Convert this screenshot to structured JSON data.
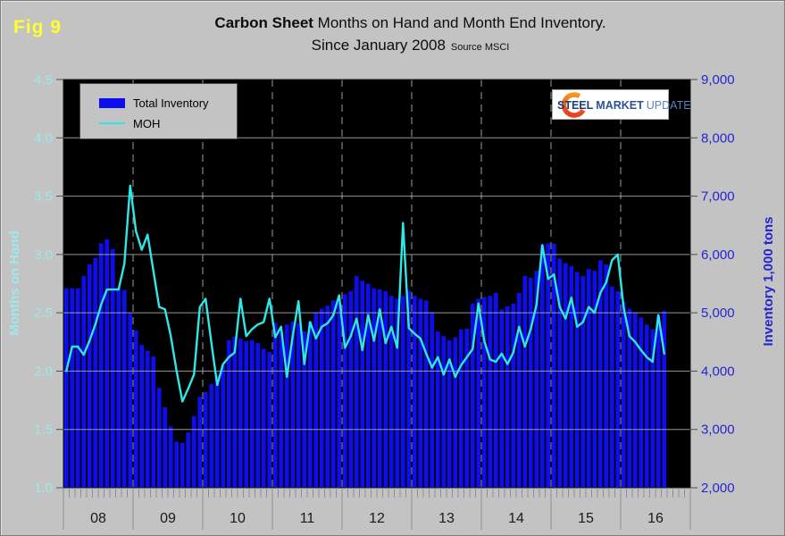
{
  "fig_label": "Fig 9",
  "title": {
    "part_bold": "Carbon Sheet",
    "part_rest": " Months on Hand and Month End Inventory.",
    "line2": "Since January 2008",
    "source": "Source MSCI"
  },
  "legend": {
    "items": [
      {
        "label": "Total Inventory",
        "type": "bar",
        "color": "#0d0df0"
      },
      {
        "label": "MOH",
        "type": "line",
        "color": "#1fe9e9"
      }
    ]
  },
  "logo": {
    "word1": "STEEL",
    "word2": "MARKET",
    "word3": "UPDATE"
  },
  "axes": {
    "left": {
      "title": "Months on Hand",
      "ticks": [
        "4.5",
        "4.0",
        "3.5",
        "3.0",
        "2.5",
        "2.0",
        "1.5",
        "1.0"
      ],
      "color": "#9fe8ea"
    },
    "right": {
      "title": "Inventory 1,000 tons",
      "ticks": [
        "9,000",
        "8,000",
        "7,000",
        "6,000",
        "5,000",
        "4,000",
        "3,000",
        "2,000"
      ],
      "color": "#2525d2"
    },
    "x": {
      "year_labels": [
        "08",
        "09",
        "10",
        "11",
        "12",
        "13",
        "14",
        "15",
        "16"
      ]
    }
  },
  "colors": {
    "page_bg": "#c3c3c3",
    "plot_bg": "#000000",
    "bar": "#0d0df0",
    "moh_line": "#2ee8e8",
    "h_gridline": "#c8c8c8",
    "v_year_line": "#9b9b9b",
    "axis_line": "#1a1a1a",
    "tick": "#4d4d4d",
    "minor_tick": "#8d9096",
    "year_label": "#1a1a1a"
  },
  "chart_data": {
    "type": "bar+line",
    "title": "Carbon Sheet Months on Hand and Month End Inventory. Since January 2008",
    "source": "MSCI",
    "x_start_month": "2008-01",
    "x_end_month": "2016-08",
    "n_months": 104,
    "x_years": [
      "08",
      "09",
      "10",
      "11",
      "12",
      "13",
      "14",
      "15",
      "16"
    ],
    "ylim_left_moh": [
      1.0,
      4.5
    ],
    "ylim_right_inventory_ktons": [
      2000,
      9000
    ],
    "grid": true,
    "legend_position": "top-left",
    "series": [
      {
        "name": "Total Inventory",
        "type": "bar",
        "axis": "right",
        "units": "1,000 tons",
        "color": "#0d0df0",
        "values": [
          5420,
          5420,
          5420,
          5630,
          5830,
          5940,
          6190,
          6260,
          6090,
          5430,
          5390,
          4990,
          4700,
          4450,
          4350,
          4250,
          3710,
          3380,
          3050,
          2790,
          2770,
          2950,
          3230,
          3560,
          3640,
          3780,
          3920,
          4100,
          4530,
          4590,
          4560,
          4510,
          4530,
          4480,
          4380,
          4330,
          4830,
          4660,
          4800,
          4850,
          4820,
          4680,
          4850,
          5000,
          5070,
          5120,
          5210,
          5170,
          5320,
          5370,
          5630,
          5550,
          5500,
          5420,
          5400,
          5370,
          5290,
          5240,
          5290,
          5380,
          5290,
          5240,
          5210,
          5010,
          4680,
          4600,
          4530,
          4580,
          4710,
          4730,
          5160,
          5240,
          5270,
          5290,
          5340,
          5060,
          5110,
          5160,
          5340,
          5630,
          5600,
          5720,
          6170,
          6190,
          6180,
          5930,
          5850,
          5800,
          5700,
          5630,
          5750,
          5720,
          5900,
          5830,
          5450,
          5370,
          5190,
          5070,
          5000,
          4920,
          4800,
          4720,
          4950,
          5030
        ]
      },
      {
        "name": "MOH",
        "type": "line",
        "axis": "left",
        "units": "months",
        "color": "#2ee8e8",
        "values": [
          2.0,
          2.21,
          2.21,
          2.14,
          2.26,
          2.4,
          2.57,
          2.7,
          2.7,
          2.7,
          2.92,
          3.59,
          3.2,
          3.04,
          3.17,
          2.86,
          2.55,
          2.53,
          2.3,
          2.0,
          1.74,
          1.85,
          1.97,
          2.55,
          2.62,
          2.24,
          1.88,
          2.06,
          2.12,
          2.16,
          2.62,
          2.3,
          2.36,
          2.4,
          2.42,
          2.62,
          2.29,
          2.38,
          1.95,
          2.3,
          2.6,
          2.06,
          2.42,
          2.28,
          2.38,
          2.41,
          2.48,
          2.65,
          2.2,
          2.3,
          2.45,
          2.18,
          2.48,
          2.26,
          2.53,
          2.24,
          2.38,
          2.2,
          3.27,
          2.37,
          2.32,
          2.28,
          2.15,
          2.03,
          2.12,
          1.97,
          2.1,
          1.95,
          2.05,
          2.12,
          2.19,
          2.58,
          2.26,
          2.1,
          2.08,
          2.15,
          2.06,
          2.16,
          2.38,
          2.21,
          2.36,
          2.57,
          3.08,
          2.79,
          2.83,
          2.55,
          2.45,
          2.63,
          2.38,
          2.42,
          2.55,
          2.5,
          2.67,
          2.76,
          2.95,
          3.0,
          2.55,
          2.3,
          2.25,
          2.18,
          2.12,
          2.08,
          2.48,
          2.15
        ]
      }
    ]
  }
}
